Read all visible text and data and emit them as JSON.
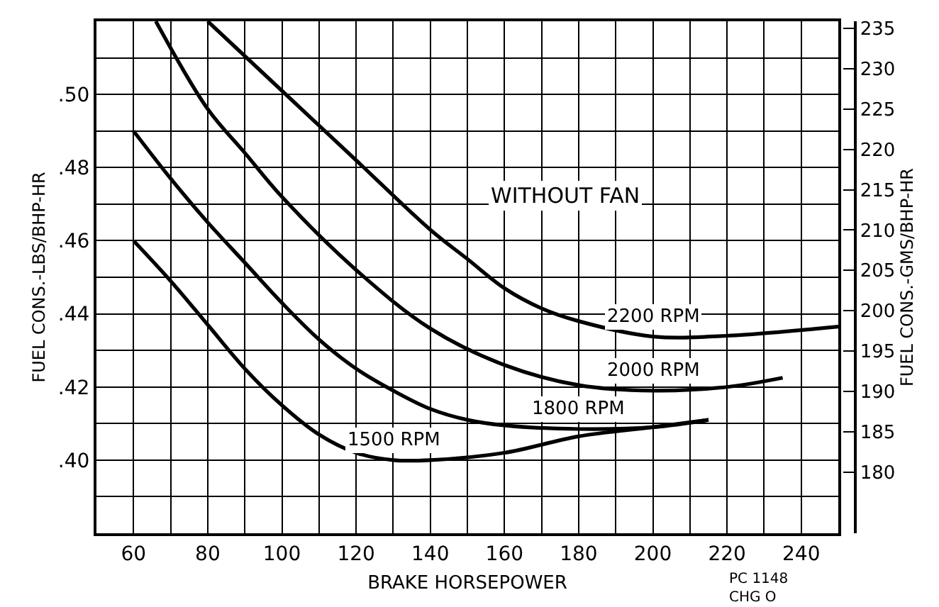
{
  "chart_data": {
    "type": "line",
    "xlabel": "BRAKE HORSEPOWER",
    "ylabel": "FUEL CONS.-LBS/BHP-HR",
    "y2label": "FUEL CONS.-GMS/BHP-HR",
    "xlim": [
      50,
      250
    ],
    "xticks": [
      {
        "value": 50,
        "label": null
      },
      60,
      {
        "value": 70,
        "label": null
      },
      80,
      {
        "value": 90,
        "label": null
      },
      100,
      {
        "value": 110,
        "label": null
      },
      120,
      {
        "value": 130,
        "label": null
      },
      140,
      {
        "value": 150,
        "label": null
      },
      160,
      {
        "value": 170,
        "label": null
      },
      180,
      {
        "value": 190,
        "label": null
      },
      200,
      {
        "value": 210,
        "label": null
      },
      220,
      {
        "value": 230,
        "label": null
      },
      240,
      {
        "value": 250,
        "label": null
      }
    ],
    "ylim": [
      0.38,
      0.52
    ],
    "yticks": [
      {
        "value": 0.38,
        "label": null
      },
      {
        "value": 0.39,
        "label": null
      },
      {
        "value": 0.4,
        "label": ".40"
      },
      {
        "value": 0.41,
        "label": null
      },
      {
        "value": 0.42,
        "label": ".42"
      },
      {
        "value": 0.43,
        "label": null
      },
      {
        "value": 0.44,
        "label": ".44"
      },
      {
        "value": 0.45,
        "label": null
      },
      {
        "value": 0.46,
        "label": ".46"
      },
      {
        "value": 0.47,
        "label": null
      },
      {
        "value": 0.48,
        "label": ".48"
      },
      {
        "value": 0.49,
        "label": null
      },
      {
        "value": 0.5,
        "label": ".50"
      },
      {
        "value": 0.51,
        "label": null
      },
      {
        "value": 0.52,
        "label": null
      }
    ],
    "y2lim": [
      172.4,
      235.9
    ],
    "y2ticks": [
      180,
      185,
      190,
      195,
      200,
      205,
      210,
      215,
      220,
      225,
      230,
      235
    ],
    "grid": true,
    "legend": false,
    "marker": "none",
    "line_style": "solid",
    "series": [
      {
        "name": "1500 RPM",
        "color": "#000000",
        "x": [
          60,
          70,
          80,
          90,
          100,
          110,
          120,
          130,
          140,
          160,
          180,
          200,
          215
        ],
        "values": [
          0.46,
          0.449,
          0.437,
          0.425,
          0.415,
          0.407,
          0.402,
          0.4,
          0.4,
          0.402,
          0.4065,
          0.409,
          0.411
        ]
      },
      {
        "name": "1800 RPM",
        "color": "#000000",
        "x": [
          60,
          70,
          80,
          90,
          100,
          110,
          120,
          130,
          140,
          150,
          160,
          180,
          200,
          215
        ],
        "values": [
          0.49,
          0.477,
          0.465,
          0.454,
          0.443,
          0.433,
          0.425,
          0.419,
          0.414,
          0.411,
          0.4095,
          0.4085,
          0.409,
          0.411
        ]
      },
      {
        "name": "2000 RPM",
        "color": "#000000",
        "x": [
          66,
          80,
          90,
          100,
          120,
          140,
          160,
          180,
          200,
          220,
          235
        ],
        "values": [
          0.52,
          0.496,
          0.484,
          0.472,
          0.452,
          0.436,
          0.426,
          0.4205,
          0.419,
          0.42,
          0.4225
        ]
      },
      {
        "name": "2200 RPM",
        "color": "#000000",
        "x": [
          80,
          100,
          120,
          140,
          150,
          160,
          170,
          180,
          200,
          220,
          250
        ],
        "values": [
          0.52,
          0.501,
          0.482,
          0.463,
          0.455,
          0.447,
          0.4415,
          0.438,
          0.4338,
          0.434,
          0.4365
        ]
      }
    ],
    "annotations": [
      "WITHOUT FAN",
      "PC 1148\nCHG O"
    ]
  }
}
